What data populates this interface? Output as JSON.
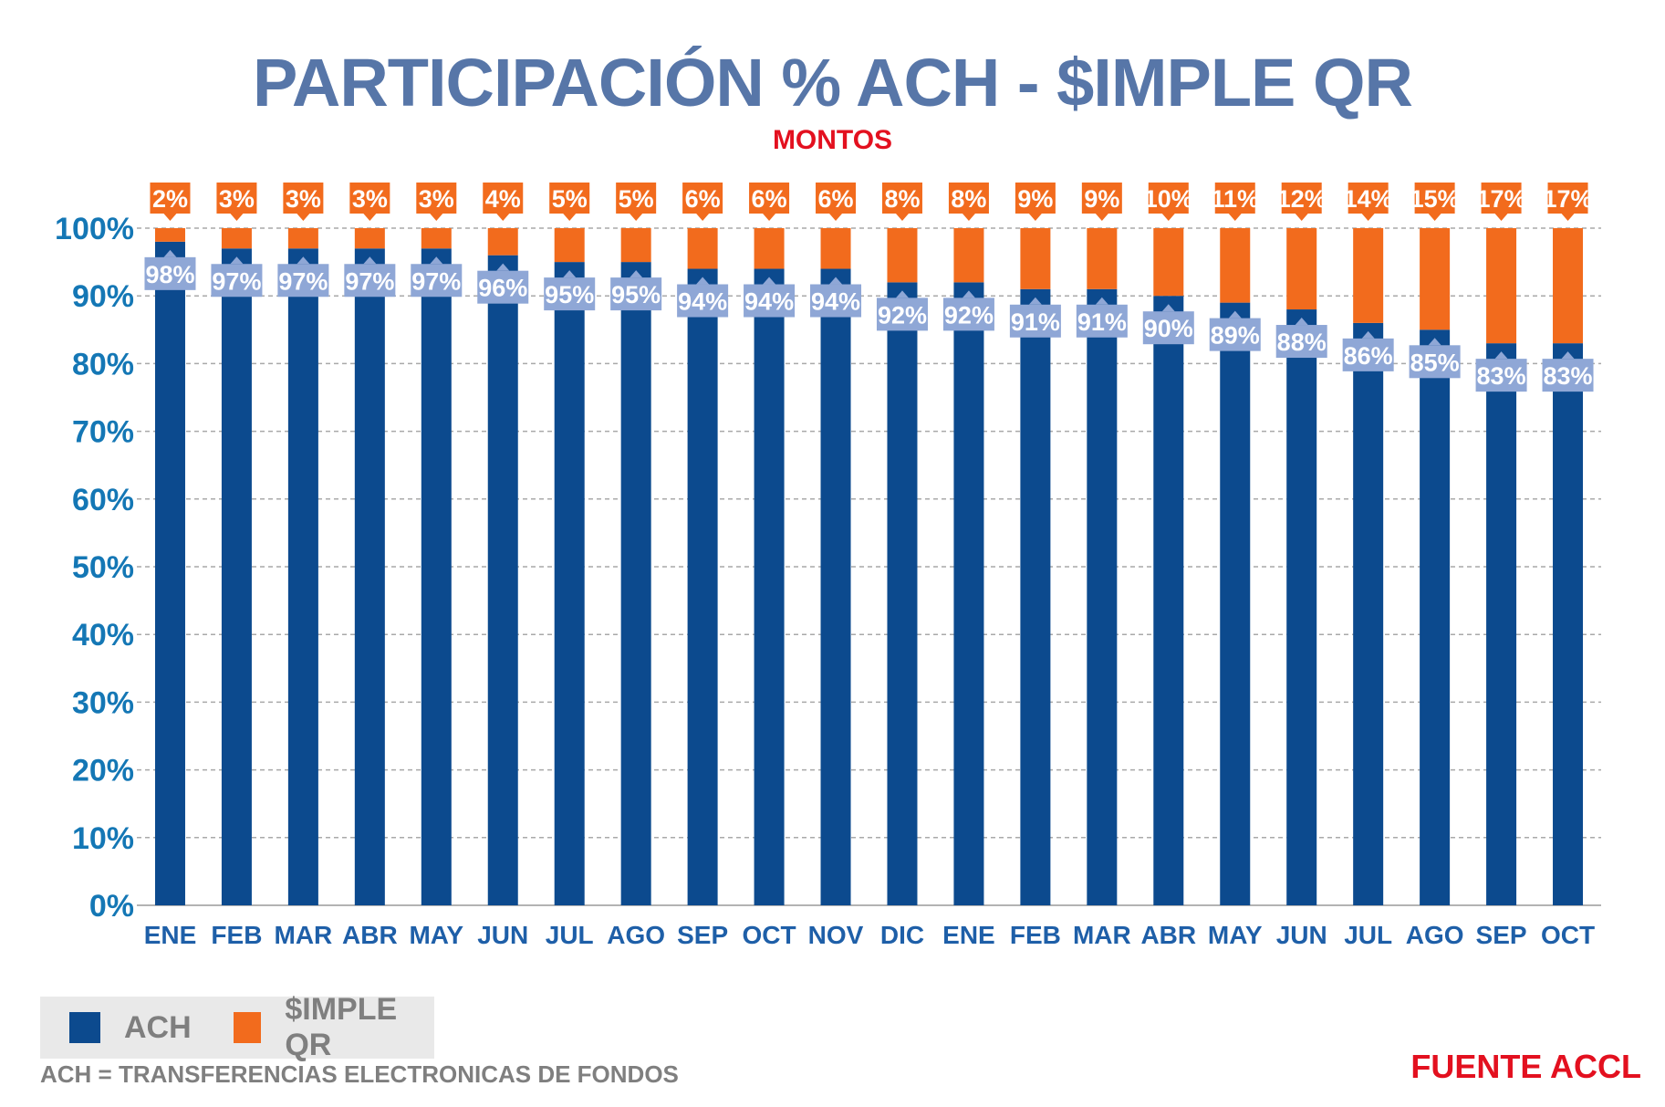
{
  "colors": {
    "ach": "#0c4a8e",
    "qr": "#f26b1d",
    "title": "#5776a8",
    "subtitle": "#e3101f",
    "axis": "#1477b5",
    "grid": "#a9a9a9",
    "achLabelBg": "#8fa7d6"
  },
  "legend": {
    "ach_label": "ACH",
    "qr_label": "$IMPLE QR"
  },
  "footnote": "ACH = TRANSFERENCIAS ELECTRONICAS DE FONDOS",
  "source": "FUENTE ACCL",
  "chart_data": {
    "type": "bar",
    "stacked": true,
    "title": "PARTICIPACIÓN % ACH - $IMPLE QR",
    "subtitle": "MONTOS",
    "xlabel": "",
    "ylabel": "",
    "ylim": [
      0,
      100
    ],
    "yticks": [
      "0%",
      "10%",
      "20%",
      "30%",
      "40%",
      "50%",
      "60%",
      "70%",
      "80%",
      "90%",
      "100%"
    ],
    "grid": true,
    "legend_position": "bottom-left",
    "categories": [
      "ENE",
      "FEB",
      "MAR",
      "ABR",
      "MAY",
      "JUN",
      "JUL",
      "AGO",
      "SEP",
      "OCT",
      "NOV",
      "DIC",
      "ENE",
      "FEB",
      "MAR",
      "ABR",
      "MAY",
      "JUN",
      "JUL",
      "AGO",
      "SEP",
      "OCT"
    ],
    "series": [
      {
        "name": "ACH",
        "values": [
          98,
          97,
          97,
          97,
          97,
          96,
          95,
          95,
          94,
          94,
          94,
          92,
          92,
          91,
          91,
          90,
          89,
          88,
          86,
          85,
          83,
          83
        ]
      },
      {
        "name": "$IMPLE QR",
        "values": [
          2,
          3,
          3,
          3,
          3,
          4,
          5,
          5,
          6,
          6,
          6,
          8,
          8,
          9,
          9,
          10,
          11,
          12,
          14,
          15,
          17,
          17
        ]
      }
    ]
  }
}
